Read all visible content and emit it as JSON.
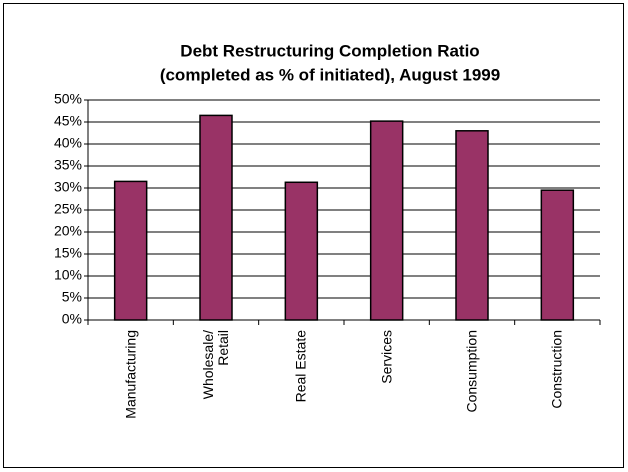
{
  "chart_data": {
    "type": "bar",
    "title": "Debt Restructuring Completion Ratio",
    "subtitle": "(completed as % of initiated),  August 1999",
    "categories": [
      "Manufacturing",
      "Wholesale/\nRetail",
      "Real Estate",
      "Services",
      "Consumption",
      "Construction"
    ],
    "values": [
      31.5,
      46.5,
      31.3,
      45.2,
      43,
      29.5
    ],
    "color": "#993366",
    "ylim": [
      0,
      50
    ],
    "yticks": [
      {
        "value": 0,
        "label": "0%"
      },
      {
        "value": 5,
        "label": "5%"
      },
      {
        "value": 10,
        "label": "10%"
      },
      {
        "value": 15,
        "label": "15%"
      },
      {
        "value": 20,
        "label": "20%"
      },
      {
        "value": 25,
        "label": "25%"
      },
      {
        "value": 30,
        "label": "30%"
      },
      {
        "value": 35,
        "label": "35%"
      },
      {
        "value": 40,
        "label": "40%"
      },
      {
        "value": 45,
        "label": "45%"
      },
      {
        "value": 50,
        "label": "50%"
      }
    ],
    "grid": true
  }
}
